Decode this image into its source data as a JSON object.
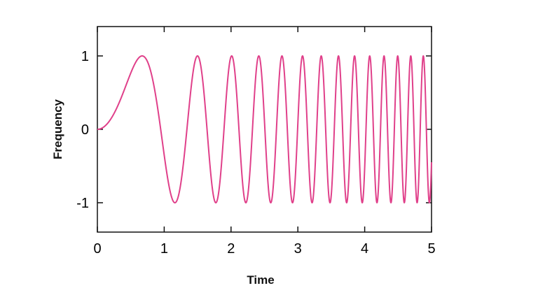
{
  "chart_data": {
    "type": "line",
    "title": "",
    "xlabel": "Time",
    "ylabel": "Frequency",
    "xlim": [
      0,
      5
    ],
    "ylim": [
      -1.4,
      1.4
    ],
    "xticks": [
      0,
      1,
      2,
      3,
      4,
      5
    ],
    "yticks": [
      -1,
      0,
      1
    ],
    "xtick_labels": [
      "0",
      "1",
      "2",
      "3",
      "4",
      "5"
    ],
    "ytick_labels": [
      "-1",
      "0",
      "1"
    ],
    "grid": false,
    "legend": "none",
    "series": [
      {
        "function": "y = sin(3.5 * x^2)",
        "x_range": [
          0,
          5
        ],
        "color": "#e0408a"
      }
    ]
  }
}
